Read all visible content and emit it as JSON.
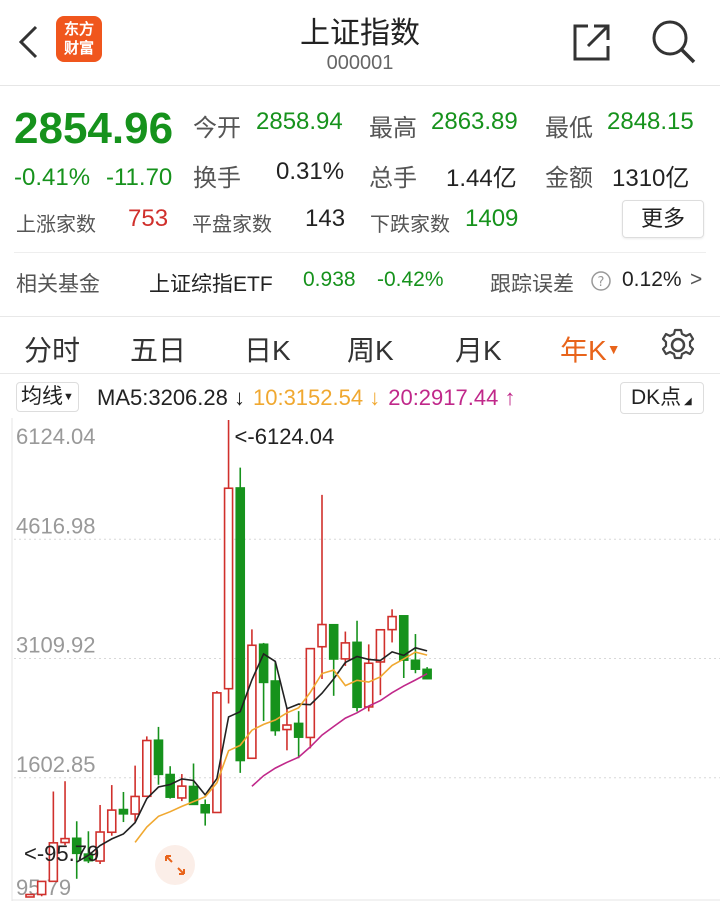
{
  "header": {
    "title": "上证指数",
    "code": "000001",
    "logo_text": "东方财富",
    "back_icon": "chevron-left-icon",
    "share_icon": "share-icon",
    "search_icon": "search-icon"
  },
  "quote": {
    "price": "2854.96",
    "change_pct": "-0.41%",
    "change": "-11.70",
    "open_label": "今开",
    "open": "2858.94",
    "high_label": "最高",
    "high": "2863.89",
    "low_label": "最低",
    "low": "2848.15",
    "turnover_label": "换手",
    "turnover": "0.31%",
    "volume_label": "总手",
    "volume": "1.44亿",
    "amount_label": "金额",
    "amount": "1310亿",
    "up_label": "上涨家数",
    "up": "753",
    "flat_label": "平盘家数",
    "flat": "143",
    "down_label": "下跌家数",
    "down": "1409",
    "more_label": "更多"
  },
  "fund": {
    "label": "相关基金",
    "name": "上证综指ETF",
    "price": "0.938",
    "change_pct": "-0.42%",
    "err_label": "跟踪误差",
    "err": "0.12%",
    "arrow": ">"
  },
  "tabs": [
    {
      "label": "分时"
    },
    {
      "label": "五日"
    },
    {
      "label": "日K"
    },
    {
      "label": "周K"
    },
    {
      "label": "月K"
    },
    {
      "label": "年K",
      "active": true
    }
  ],
  "ma": {
    "select_label": "均线",
    "ma5": "MA5:3206.28 ↓",
    "ma10": "10:3152.54 ↓",
    "ma20": "20:2917.44 ↑",
    "dk_label": "DK点"
  },
  "colors": {
    "up": "#d0302c",
    "down": "#16921c",
    "accent": "#e8641b",
    "ma5": "#222222",
    "ma10": "#f0a830",
    "ma20": "#c0288a"
  },
  "chart_data": {
    "type": "candlestick",
    "ylim": [
      95.79,
      6124.04
    ],
    "ytick_labels": [
      "6124.04",
      "4616.98",
      "3109.92",
      "1602.85",
      "95.79"
    ],
    "max_label": "<-6124.04",
    "min_label": "<-95.79",
    "grid": true,
    "ohlc": [
      [
        96.05,
        127.61,
        95.79,
        127.61
      ],
      [
        127.61,
        292.75,
        104.96,
        292.75
      ],
      [
        293.74,
        1429.01,
        292.76,
        780.39
      ],
      [
        784.13,
        1558.95,
        750.46,
        833.8
      ],
      [
        837.7,
        1052.94,
        325.89,
        647.87
      ],
      [
        637.72,
        926.41,
        524.43,
        555.29
      ],
      [
        550.26,
        1258.69,
        512.83,
        917.02
      ],
      [
        914.06,
        1510.18,
        870.18,
        1194.1
      ],
      [
        1200.95,
        1422.98,
        1043.02,
        1146.7
      ],
      [
        1144.89,
        1756.18,
        1047.83,
        1366.58
      ],
      [
        1368.69,
        2125.72,
        1361.21,
        2073.48
      ],
      [
        2077.08,
        2245.43,
        1514.86,
        1645.97
      ],
      [
        1643.48,
        1748.89,
        1339.2,
        1357.65
      ],
      [
        1347.43,
        1649.6,
        1307.4,
        1497.04
      ],
      [
        1492.72,
        1783.01,
        1259.43,
        1266.5
      ],
      [
        1260.78,
        1328.53,
        998.23,
        1161.06
      ],
      [
        1163.88,
        2698.9,
        1161.91,
        2675.47
      ],
      [
        2728.19,
        6124.04,
        2541.53,
        5261.56
      ],
      [
        5265,
        5522.78,
        1664.93,
        1820.81
      ],
      [
        1849.02,
        3478.01,
        1844.09,
        3277.14
      ],
      [
        3289.75,
        3306.75,
        2319.74,
        2808.08
      ],
      [
        2825.33,
        3067.46,
        2134.02,
        2199.42
      ],
      [
        2212,
        2478.38,
        1949.46,
        2269.13
      ],
      [
        2289.51,
        2444.8,
        1849.65,
        2115.98
      ],
      [
        2112.13,
        3239.36,
        1974.38,
        3234.68
      ],
      [
        3258.63,
        5178.19,
        2850.71,
        3539.18
      ],
      [
        3536.59,
        3538.69,
        2638.3,
        3103.64
      ],
      [
        3105.31,
        3450.49,
        3016.53,
        3307.17
      ],
      [
        3314.03,
        3587.03,
        2440.91,
        2493.9
      ],
      [
        2497.88,
        3288.45,
        2440.91,
        3050.12
      ],
      [
        3066.34,
        3474.92,
        2646.8,
        3473.07
      ],
      [
        3474.68,
        3731.69,
        3312.72,
        3639.78
      ],
      [
        3649.15,
        3651.89,
        2863.65,
        3089.26
      ],
      [
        3087.51,
        3418.95,
        2923.51,
        2974.93
      ],
      [
        2972.78,
        3001,
        2848.15,
        2854.96
      ]
    ],
    "ohlc_order": [
      "open",
      "high",
      "low",
      "close"
    ],
    "ma_periods": [
      5,
      10,
      20
    ]
  }
}
